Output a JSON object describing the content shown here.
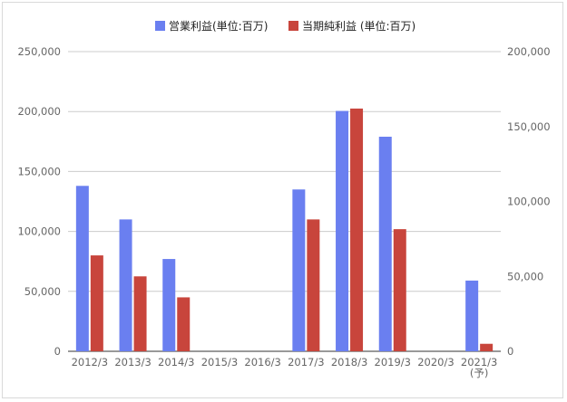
{
  "chart_data": {
    "type": "bar",
    "categories": [
      "2012/3",
      "2013/3",
      "2014/3",
      "2015/3",
      "2016/3",
      "2017/3",
      "2018/3",
      "2019/3",
      "2020/3",
      "2021/3\n(予)"
    ],
    "series": [
      {
        "name": "営業利益(単位:百万)",
        "axis": "left",
        "color": "#6a7ff0",
        "values": [
          138000,
          110000,
          77000,
          null,
          null,
          135000,
          200500,
          179000,
          null,
          59000
        ]
      },
      {
        "name": "当期純利益 (単位:百万)",
        "axis": "right",
        "color": "#c8453c",
        "values": [
          64000,
          50000,
          36000,
          null,
          null,
          88000,
          162000,
          81500,
          null,
          5000
        ]
      }
    ],
    "left_axis": {
      "ylim": [
        0,
        250000
      ],
      "tick_labels": [
        "0",
        "50,000",
        "100,000",
        "150,000",
        "200,000",
        "250,000"
      ]
    },
    "right_axis": {
      "ylim": [
        0,
        200000
      ],
      "tick_labels": [
        "0",
        "50,000",
        "100,000",
        "150,000",
        "200,000"
      ]
    },
    "grid": true,
    "legend_position": "top-center"
  }
}
